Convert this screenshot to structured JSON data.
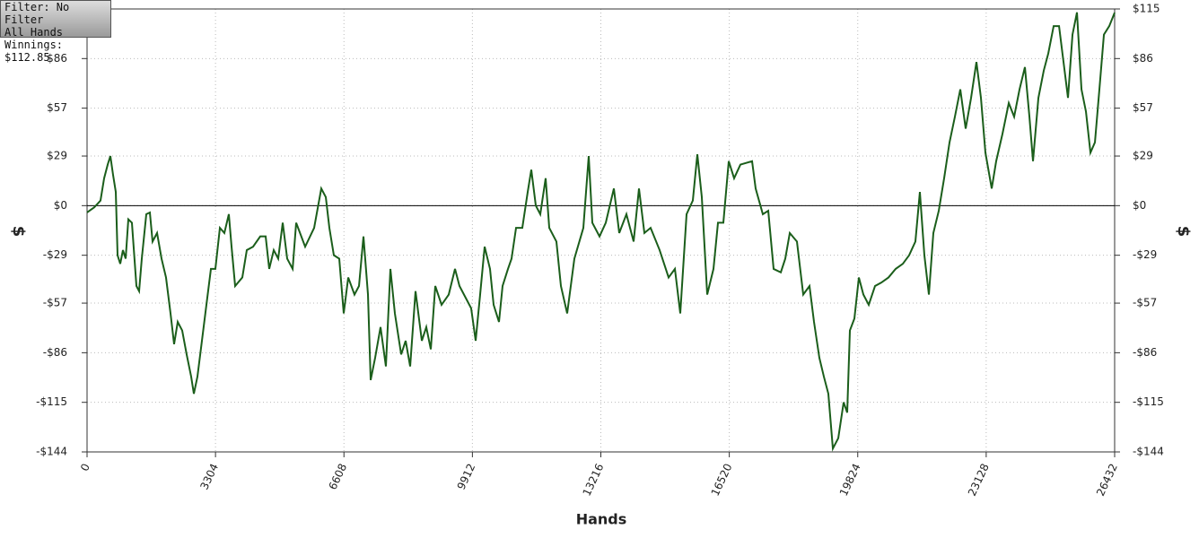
{
  "chart_data": {
    "type": "line",
    "annotations": [
      "Filter: No Filter",
      "All Hands",
      "Winnings: $112.85"
    ],
    "xlabel": "Hands",
    "ylabel": "$",
    "y2label": "$",
    "xlim": [
      0,
      26432
    ],
    "xticks": [
      0,
      3304,
      6608,
      9912,
      13216,
      16520,
      19824,
      23128,
      26432
    ],
    "ylim": [
      -144,
      115
    ],
    "yticks": [
      {
        "value": -144,
        "label": "-$144"
      },
      {
        "value": -115,
        "label": "-$115"
      },
      {
        "value": -86,
        "label": "-$86"
      },
      {
        "value": -57,
        "label": "-$57"
      },
      {
        "value": -29,
        "label": "-$29"
      },
      {
        "value": 0,
        "label": "$0"
      },
      {
        "value": 29,
        "label": "$29"
      },
      {
        "value": 57,
        "label": "$57"
      },
      {
        "value": 86,
        "label": "$86"
      },
      {
        "value": 115,
        "label": "$115"
      }
    ],
    "grid": true,
    "hline": 0,
    "series": [
      {
        "color": "#1b5e1b",
        "x": [
          0,
          185,
          346,
          439,
          531,
          600,
          669,
          739,
          785,
          854,
          923,
          993,
          1062,
          1154,
          1270,
          1339,
          1408,
          1524,
          1616,
          1685,
          1801,
          1916,
          2031,
          2147,
          2239,
          2332,
          2447,
          2562,
          2678,
          2747,
          2839,
          2955,
          3070,
          3186,
          3301,
          3417,
          3532,
          3647,
          3717,
          3809,
          3994,
          4109,
          4271,
          4455,
          4594,
          4686,
          4802,
          4917,
          5033,
          5148,
          5288,
          5379,
          5610,
          5841,
          6025,
          6141,
          6233,
          6348,
          6487,
          6602,
          6718,
          6879,
          6995,
          7110,
          7226,
          7295,
          7410,
          7549,
          7687,
          7803,
          7918,
          8080,
          8195,
          8311,
          8449,
          8611,
          8726,
          8842,
          8957,
          9119,
          9303,
          9465,
          9580,
          9765,
          9880,
          9996,
          10111,
          10227,
          10365,
          10458,
          10596,
          10688,
          10827,
          10919,
          11035,
          11196,
          11335,
          11427,
          11543,
          11658,
          11796,
          11889,
          12073,
          12189,
          12350,
          12535,
          12766,
          12904,
          12997,
          13182,
          13343,
          13551,
          13689,
          13874,
          14059,
          14197,
          14336,
          14496,
          14728,
          14959,
          15121,
          15259,
          15421,
          15582,
          15698,
          15813,
          15952,
          16113,
          16229,
          16367,
          16506,
          16644,
          16806,
          17106,
          17198,
          17383,
          17522,
          17660,
          17845,
          17960,
          18076,
          18260,
          18422,
          18583,
          18699,
          18837,
          18953,
          19068,
          19184,
          19323,
          19461,
          19553,
          19622,
          19738,
          19853,
          19969,
          20107,
          20269,
          20430,
          20615,
          20799,
          20984,
          21146,
          21307,
          21422,
          21538,
          21654,
          21769,
          21908,
          22046,
          22185,
          22323,
          22462,
          22600,
          22739,
          22877,
          22993,
          23108,
          23270,
          23385,
          23547,
          23709,
          23847,
          23986,
          24124,
          24240,
          24332,
          24471,
          24609,
          24725,
          24863,
          25002,
          25117,
          25232,
          25348,
          25463,
          25579,
          25694,
          25810,
          25925,
          26040,
          26156,
          26294,
          26432
        ],
        "values": [
          -4,
          -1,
          3,
          16,
          24,
          29,
          18,
          8,
          -29,
          -34,
          -26,
          -31,
          -8,
          -10,
          -47,
          -50,
          -31,
          -5,
          -4,
          -21,
          -16,
          -31,
          -42,
          -63,
          -81,
          -68,
          -73,
          -87,
          -100,
          -110,
          -100,
          -79,
          -58,
          -37,
          -37,
          -13,
          -16,
          -5,
          -24,
          -47,
          -42,
          -26,
          -24,
          -18,
          -18,
          -37,
          -26,
          -31,
          -10,
          -31,
          -37,
          -10,
          -24,
          -13,
          10,
          5,
          -13,
          -29,
          -31,
          -63,
          -42,
          -52,
          -47,
          -18,
          -52,
          -102,
          -89,
          -71,
          -94,
          -37,
          -63,
          -87,
          -79,
          -94,
          -50,
          -79,
          -71,
          -84,
          -47,
          -58,
          -52,
          -37,
          -47,
          -55,
          -60,
          -79,
          -52,
          -24,
          -37,
          -58,
          -68,
          -47,
          -37,
          -31,
          -13,
          -13,
          8,
          21,
          0,
          -5,
          16,
          -13,
          -21,
          -47,
          -63,
          -31,
          -13,
          29,
          -10,
          -18,
          -10,
          10,
          -16,
          -5,
          -21,
          10,
          -16,
          -13,
          -26,
          -42,
          -37,
          -63,
          -5,
          3,
          30,
          5,
          -52,
          -37,
          -10,
          -10,
          26,
          16,
          24,
          26,
          10,
          -5,
          -3,
          -37,
          -39,
          -31,
          -16,
          -21,
          -52,
          -47,
          -68,
          -89,
          -100,
          -110,
          -142,
          -136,
          -115,
          -121,
          -73,
          -66,
          -42,
          -52,
          -58,
          -47,
          -45,
          -42,
          -37,
          -34,
          -29,
          -21,
          8,
          -29,
          -52,
          -16,
          -3,
          16,
          37,
          52,
          68,
          45,
          63,
          84,
          63,
          31,
          10,
          26,
          42,
          60,
          52,
          68,
          81,
          52,
          26,
          63,
          79,
          89,
          105,
          105,
          84,
          63,
          100,
          113,
          68,
          55,
          31,
          37,
          68,
          100,
          105,
          112.85
        ]
      }
    ]
  }
}
